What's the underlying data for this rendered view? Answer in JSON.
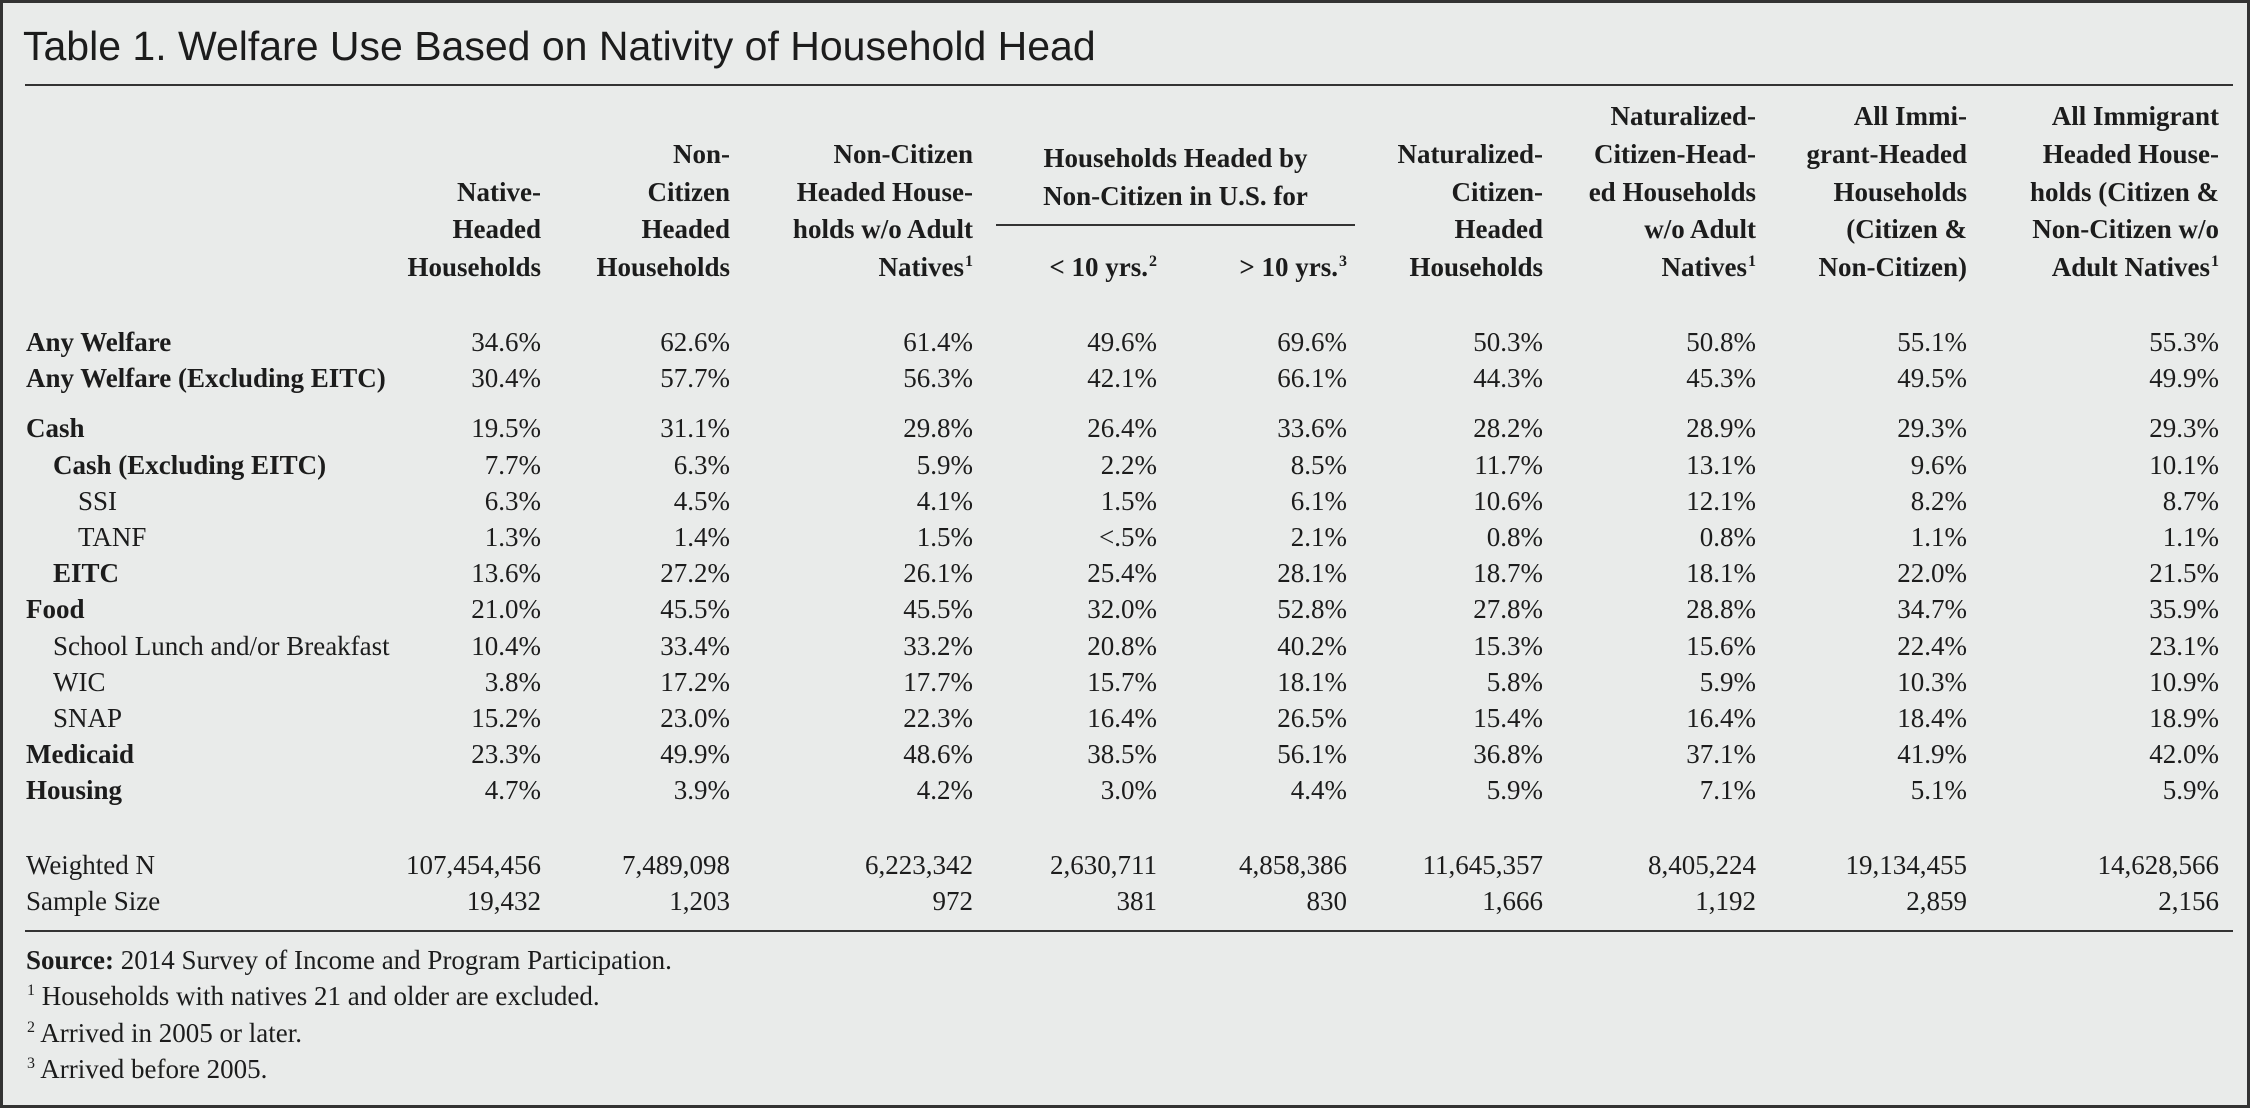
{
  "title": "Table 1. Welfare Use Based on Nativity of Household Head",
  "table": {
    "group": {
      "lines": [
        "Households Headed by",
        "Non-Citizen in U.S. for"
      ]
    },
    "columns": [
      {
        "lines": [
          "Native-",
          "Headed",
          "Households"
        ]
      },
      {
        "lines": [
          "Non-",
          "Citizen",
          "Headed",
          "Households"
        ]
      },
      {
        "lines": [
          "Non-Citizen",
          "Headed House-",
          "holds w/o Adult",
          "Natives"
        ],
        "note": "1"
      },
      {
        "lines": [
          "< 10 yrs."
        ],
        "note": "2"
      },
      {
        "lines": [
          "> 10 yrs."
        ],
        "note": "3"
      },
      {
        "lines": [
          "Naturalized-",
          "Citizen-",
          "Headed",
          "Households"
        ]
      },
      {
        "lines": [
          "Naturalized-",
          "Citizen-Head-",
          "ed Households",
          "w/o Adult",
          "Natives"
        ],
        "note": "1"
      },
      {
        "lines": [
          "All Immi-",
          "grant-Headed",
          "Households",
          "(Citizen &",
          "Non-Citizen)"
        ]
      },
      {
        "lines": [
          "All Immigrant",
          "Headed House-",
          "holds (Citizen &",
          "Non-Citizen w/o",
          "Adult Natives"
        ],
        "note": "1"
      }
    ],
    "rows": [
      {
        "label": "Any Welfare",
        "values": [
          "34.6%",
          "62.6%",
          "61.4%",
          "49.6%",
          "69.6%",
          "50.3%",
          "50.8%",
          "55.1%",
          "55.3%"
        ]
      },
      {
        "label": "Any Welfare (Excluding EITC)",
        "values": [
          "30.4%",
          "57.7%",
          "56.3%",
          "42.1%",
          "66.1%",
          "44.3%",
          "45.3%",
          "49.5%",
          "49.9%"
        ]
      },
      {
        "label": "Cash",
        "values": [
          "19.5%",
          "31.1%",
          "29.8%",
          "26.4%",
          "33.6%",
          "28.2%",
          "28.9%",
          "29.3%",
          "29.3%"
        ]
      },
      {
        "label": "Cash (Excluding EITC)",
        "values": [
          "7.7%",
          "6.3%",
          "5.9%",
          "2.2%",
          "8.5%",
          "11.7%",
          "13.1%",
          "9.6%",
          "10.1%"
        ]
      },
      {
        "label": "SSI",
        "values": [
          "6.3%",
          "4.5%",
          "4.1%",
          "1.5%",
          "6.1%",
          "10.6%",
          "12.1%",
          "8.2%",
          "8.7%"
        ]
      },
      {
        "label": "TANF",
        "values": [
          "1.3%",
          "1.4%",
          "1.5%",
          "<.5%",
          "2.1%",
          "0.8%",
          "0.8%",
          "1.1%",
          "1.1%"
        ]
      },
      {
        "label": "EITC",
        "values": [
          "13.6%",
          "27.2%",
          "26.1%",
          "25.4%",
          "28.1%",
          "18.7%",
          "18.1%",
          "22.0%",
          "21.5%"
        ]
      },
      {
        "label": "Food",
        "values": [
          "21.0%",
          "45.5%",
          "45.5%",
          "32.0%",
          "52.8%",
          "27.8%",
          "28.8%",
          "34.7%",
          "35.9%"
        ]
      },
      {
        "label": "School Lunch and/or Breakfast",
        "values": [
          "10.4%",
          "33.4%",
          "33.2%",
          "20.8%",
          "40.2%",
          "15.3%",
          "15.6%",
          "22.4%",
          "23.1%"
        ]
      },
      {
        "label": "WIC",
        "values": [
          "3.8%",
          "17.2%",
          "17.7%",
          "15.7%",
          "18.1%",
          "5.8%",
          "5.9%",
          "10.3%",
          "10.9%"
        ]
      },
      {
        "label": "SNAP",
        "values": [
          "15.2%",
          "23.0%",
          "22.3%",
          "16.4%",
          "26.5%",
          "15.4%",
          "16.4%",
          "18.4%",
          "18.9%"
        ]
      },
      {
        "label": "Medicaid",
        "values": [
          "23.3%",
          "49.9%",
          "48.6%",
          "38.5%",
          "56.1%",
          "36.8%",
          "37.1%",
          "41.9%",
          "42.0%"
        ]
      },
      {
        "label": "Housing",
        "values": [
          "4.7%",
          "3.9%",
          "4.2%",
          "3.0%",
          "4.4%",
          "5.9%",
          "7.1%",
          "5.1%",
          "5.9%"
        ]
      },
      {
        "label": "Weighted N",
        "values": [
          "107,454,456",
          "7,489,098",
          "6,223,342",
          "2,630,711",
          "4,858,386",
          "11,645,357",
          "8,405,224",
          "19,134,455",
          "14,628,566"
        ]
      },
      {
        "label": "Sample Size",
        "values": [
          "19,432",
          "1,203",
          "972",
          "381",
          "830",
          "1,666",
          "1,192",
          "2,859",
          "2,156"
        ]
      }
    ]
  },
  "footnotes": {
    "source": {
      "label": "Source:",
      "text": "2014 Survey of Income and Program Participation."
    },
    "notes": [
      {
        "mark": "1",
        "text": "Households with natives 21 and older are excluded."
      },
      {
        "mark": "2",
        "text": "Arrived in 2005 or later."
      },
      {
        "mark": "3",
        "text": "Arrived before 2005."
      }
    ]
  }
}
